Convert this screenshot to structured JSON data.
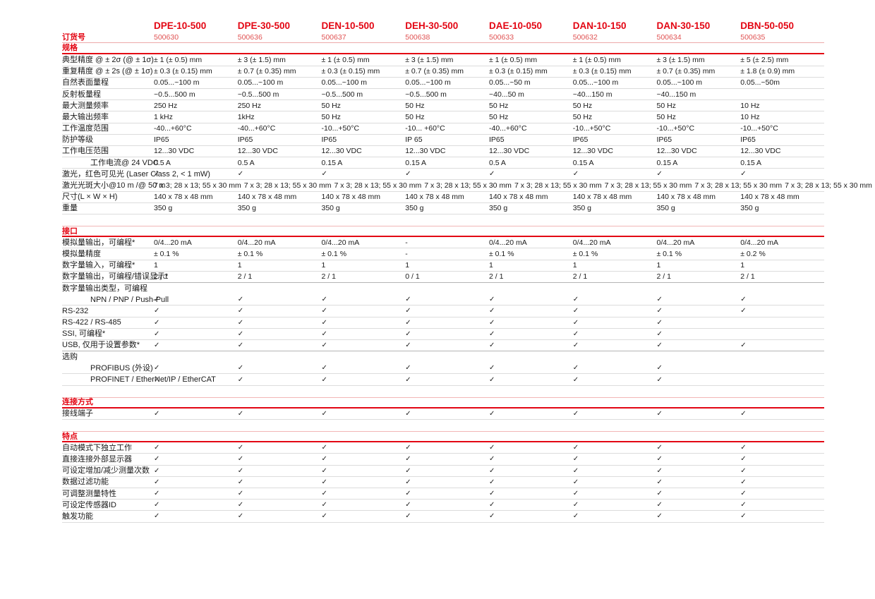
{
  "colors": {
    "accent_red": "#e30613",
    "order_number_red": "#e05252",
    "body_text": "#1a1a1a",
    "row_line_gray": "#dcdcdc",
    "dark_line_gray": "#b5b5b5",
    "section_top_line_pink": "#f2b6b6"
  },
  "check_symbol": "✓",
  "table": {
    "order_row_label": "订货号",
    "products": [
      {
        "model": "DPE-10-500",
        "order_no": "500630"
      },
      {
        "model": "DPE-30-500",
        "order_no": "500636"
      },
      {
        "model": "DEN-10-500",
        "order_no": "500637"
      },
      {
        "model": "DEH-30-500",
        "order_no": "500638"
      },
      {
        "model": "DAE-10-050",
        "order_no": "500633"
      },
      {
        "model": "DAN-10-150",
        "order_no": "500632"
      },
      {
        "model": "DAN-30-150",
        "order_no": "500634"
      },
      {
        "model": "DBN-50-050",
        "order_no": "500635"
      }
    ],
    "sections": [
      {
        "id": "specs",
        "title": "规格",
        "rows": [
          {
            "label": "典型精度 @ ± 2σ (@ ± 1σ)",
            "values": [
              "± 1 (± 0.5) mm",
              "± 3 (± 1.5) mm",
              "± 1 (± 0.5) mm",
              "± 3 (± 1.5) mm",
              "± 1 (± 0.5) mm",
              "± 1 (± 0.5) mm",
              "± 3 (± 1.5) mm",
              "± 5 (± 2.5) mm"
            ]
          },
          {
            "label": "重复精度 @ ± 2s (@ ± 1σ)",
            "values": [
              "± 0.3 (± 0.15) mm",
              "± 0.7 (± 0.35) mm",
              "± 0.3 (± 0.15) mm",
              "± 0.7 (± 0.35) mm",
              "± 0.3 (± 0.15) mm",
              "± 0.3 (± 0.15) mm",
              "± 0.7 (± 0.35) mm",
              "± 1.8 (± 0.9) mm"
            ]
          },
          {
            "label": "自然表面量程",
            "values": [
              "0.05...~100 m",
              "0.05...~100 m",
              "0.05...~100 m",
              "0.05...~100 m",
              "0.05...~50 m",
              "0.05...~100 m",
              "0.05...~100 m",
              "0.05...~50m"
            ]
          },
          {
            "label": "反射板量程",
            "values": [
              "~0.5...500 m",
              "~0.5...500 m",
              "~0.5...500 m",
              "~0.5...500 m",
              "~40...50 m",
              "~40...150 m",
              "~40...150 m",
              ""
            ]
          },
          {
            "label": "最大测量频率",
            "values": [
              "250 Hz",
              "250 Hz",
              "50 Hz",
              "50 Hz",
              "50 Hz",
              "50 Hz",
              "50 Hz",
              "10 Hz"
            ]
          },
          {
            "label": "最大输出频率",
            "values": [
              "1 kHz",
              "1kHz",
              "50 Hz",
              "50 Hz",
              "50 Hz",
              "50 Hz",
              "50 Hz",
              "10 Hz"
            ]
          },
          {
            "label": "工作温度范围",
            "values": [
              "-40...+60°C",
              "-40...+60°C",
              "-10...+50°C",
              "-10... +60°C",
              "-40...+60°C",
              "-10...+50°C",
              "-10...+50°C",
              "-10...+50°C"
            ]
          },
          {
            "label": "防护等级",
            "values": [
              "IP65",
              "IP65",
              "IP65",
              "IP 65",
              "IP65",
              "IP65",
              "IP65",
              "IP65"
            ]
          },
          {
            "label": "工作电压范围",
            "values": [
              "12...30 VDC",
              "12...30 VDC",
              "12...30 VDC",
              "12...30 VDC",
              "12...30 VDC",
              "12...30 VDC",
              "12...30 VDC",
              "12...30 VDC"
            ]
          },
          {
            "label": "工作电流@ 24 VDC",
            "indent": true,
            "values": [
              "0.5 A",
              "0.5 A",
              "0.15 A",
              "0.15 A",
              "0.5 A",
              "0.15 A",
              "0.15 A",
              "0.15 A"
            ]
          },
          {
            "label": "激光，红色可见光 (Laser Class 2, < 1 mW)",
            "values": [
              "✓",
              "✓",
              "✓",
              "✓",
              "✓",
              "✓",
              "✓",
              "✓"
            ]
          },
          {
            "label": "激光光斑大小@10 m /@ 50 m",
            "values": [
              "7 x 3; 28 x 13; 55 x 30 mm",
              "7 x 3; 28 x 13; 55 x 30 mm",
              "7 x 3; 28 x 13; 55 x 30 mm",
              "7 x 3; 28 x 13; 55 x 30 mm",
              "7 x 3; 28 x 13; 55 x 30 mm",
              "7 x 3; 28 x 13; 55 x 30 mm",
              "7 x 3; 28 x 13; 55 x 30 mm",
              "7 x 3; 28 x 13; 55 x 30 mm"
            ]
          },
          {
            "label": "尺寸(L × W × H)",
            "values": [
              "140 x 78 x 48 mm",
              "140 x 78 x 48 mm",
              "140 x 78 x 48 mm",
              "140 x 78 x 48 mm",
              "140 x 78 x 48 mm",
              "140 x 78 x 48 mm",
              "140 x 78 x 48 mm",
              "140 x 78 x 48 mm"
            ]
          },
          {
            "label": "重量",
            "values": [
              "350 g",
              "350 g",
              "350 g",
              "350 g",
              "350 g",
              "350 g",
              "350 g",
              "350 g"
            ]
          }
        ]
      },
      {
        "id": "interface",
        "title": "接口",
        "rows": [
          {
            "label": "模拟量输出，可编程*",
            "values": [
              "0/4...20 mA",
              "0/4...20 mA",
              "0/4...20 mA",
              "-",
              "0/4...20 mA",
              "0/4...20 mA",
              "0/4...20 mA",
              "0/4...20 mA"
            ]
          },
          {
            "label": "模拟量精度",
            "values": [
              "± 0.1 %",
              "± 0.1 %",
              "± 0.1 %",
              "-",
              "± 0.1 %",
              "± 0.1 %",
              "± 0.1 %",
              "± 0.2 %"
            ]
          },
          {
            "label": "数字量输入，可编程*",
            "values": [
              "1",
              "1",
              "1",
              "1",
              "1",
              "1",
              "1",
              "1"
            ]
          },
          {
            "label": "数字量输出，可编程/错误显示*",
            "divider": "dark",
            "values": [
              "2 / 1",
              "2 / 1",
              "2 / 1",
              "0 / 1",
              "2 / 1",
              "2 / 1",
              "2 / 1",
              "2 / 1"
            ]
          },
          {
            "label": "数字量输出类型，可编程",
            "subheader": true,
            "values": [
              "",
              "",
              "",
              "",
              "",
              "",
              "",
              ""
            ]
          },
          {
            "label": "NPN / PNP / Push-Pull",
            "indent": true,
            "values": [
              "✓",
              "✓",
              "✓",
              "✓",
              "✓",
              "✓",
              "✓",
              "✓"
            ]
          },
          {
            "label": "RS-232",
            "values": [
              "✓",
              "✓",
              "✓",
              "✓",
              "✓",
              "✓",
              "✓",
              "✓"
            ]
          },
          {
            "label": "RS-422 / RS-485",
            "values": [
              "✓",
              "✓",
              "✓",
              "✓",
              "✓",
              "✓",
              "✓",
              ""
            ]
          },
          {
            "label": "SSI, 可编程*",
            "values": [
              "✓",
              "✓",
              "✓",
              "✓",
              "✓",
              "✓",
              "✓",
              ""
            ]
          },
          {
            "label": "USB, 仅用于设置参数*",
            "divider": "dark",
            "values": [
              "✓",
              "✓",
              "✓",
              "✓",
              "✓",
              "✓",
              "✓",
              "✓"
            ]
          },
          {
            "label": "选购",
            "subheader": true,
            "values": [
              "",
              "",
              "",
              "",
              "",
              "",
              "",
              ""
            ]
          },
          {
            "label": "PROFIBUS (外设)",
            "indent": true,
            "values": [
              "✓",
              "✓",
              "✓",
              "✓",
              "✓",
              "✓",
              "✓",
              ""
            ]
          },
          {
            "label": "PROFINET / EtherNet/IP / EtherCAT",
            "indent": true,
            "values": [
              "✓",
              "✓",
              "✓",
              "✓",
              "✓",
              "✓",
              "✓",
              ""
            ]
          }
        ]
      },
      {
        "id": "connection",
        "title": "连接方式",
        "rows": [
          {
            "label": "接线端子",
            "values": [
              "✓",
              "✓",
              "✓",
              "✓",
              "✓",
              "✓",
              "✓",
              "✓"
            ]
          }
        ]
      },
      {
        "id": "features",
        "title": "特点",
        "rows": [
          {
            "label": "自动模式下独立工作",
            "values": [
              "✓",
              "✓",
              "✓",
              "✓",
              "✓",
              "✓",
              "✓",
              "✓"
            ]
          },
          {
            "label": "直接连接外部显示器",
            "values": [
              "✓",
              "✓",
              "✓",
              "✓",
              "✓",
              "✓",
              "✓",
              "✓"
            ]
          },
          {
            "label": "可设定增加/减少测量次数",
            "values": [
              "✓",
              "✓",
              "✓",
              "✓",
              "✓",
              "✓",
              "✓",
              "✓"
            ]
          },
          {
            "label": "数据过滤功能",
            "values": [
              "✓",
              "✓",
              "✓",
              "✓",
              "✓",
              "✓",
              "✓",
              "✓"
            ]
          },
          {
            "label": "可调整测量特性",
            "values": [
              "✓",
              "✓",
              "✓",
              "✓",
              "✓",
              "✓",
              "✓",
              "✓"
            ]
          },
          {
            "label": "可设定传感器ID",
            "values": [
              "✓",
              "✓",
              "✓",
              "✓",
              "✓",
              "✓",
              "✓",
              "✓"
            ]
          },
          {
            "label": "触发功能",
            "values": [
              "✓",
              "✓",
              "✓",
              "✓",
              "✓",
              "✓",
              "✓",
              "✓"
            ]
          }
        ]
      }
    ]
  }
}
